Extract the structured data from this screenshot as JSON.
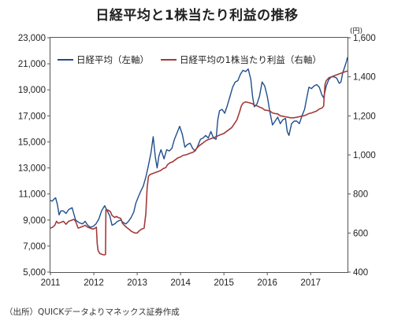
{
  "title": "日経平均と1株当たり利益の推移",
  "source": "（出所）QUICKデータよりマネックス証券作成",
  "chart_data": {
    "type": "line",
    "title": "日経平均と1株当たり利益の推移",
    "left_axis": {
      "unit": "",
      "ylim": [
        5000,
        23000
      ],
      "ticks": [
        "5,000",
        "7,000",
        "9,000",
        "11,000",
        "13,000",
        "15,000",
        "17,000",
        "19,000",
        "21,000",
        "23,000"
      ]
    },
    "right_axis": {
      "unit": "(円)",
      "ylim": [
        400,
        1600
      ],
      "ticks": [
        "400",
        "600",
        "800",
        "1,000",
        "1,200",
        "1,400",
        "1,600"
      ]
    },
    "x_ticks": [
      "2011",
      "2012",
      "2013",
      "2014",
      "2015",
      "2016",
      "2017"
    ],
    "x_range": [
      2011.0,
      2017.85
    ],
    "grid": false,
    "legend": "top-left",
    "series": [
      {
        "name": "日経平均（左軸）",
        "axis": "left",
        "color": "#1f4e8c",
        "points": [
          [
            2011.0,
            10500
          ],
          [
            2011.04,
            10450
          ],
          [
            2011.08,
            10600
          ],
          [
            2011.12,
            10700
          ],
          [
            2011.16,
            10200
          ],
          [
            2011.2,
            9400
          ],
          [
            2011.24,
            9700
          ],
          [
            2011.3,
            9700
          ],
          [
            2011.36,
            9500
          ],
          [
            2011.42,
            9800
          ],
          [
            2011.5,
            9950
          ],
          [
            2011.58,
            9000
          ],
          [
            2011.66,
            8800
          ],
          [
            2011.74,
            8700
          ],
          [
            2011.8,
            8900
          ],
          [
            2011.86,
            8600
          ],
          [
            2011.92,
            8450
          ],
          [
            2011.98,
            8500
          ],
          [
            2012.05,
            8700
          ],
          [
            2012.12,
            9100
          ],
          [
            2012.18,
            9700
          ],
          [
            2012.25,
            10100
          ],
          [
            2012.31,
            9700
          ],
          [
            2012.37,
            9300
          ],
          [
            2012.42,
            8600
          ],
          [
            2012.48,
            8700
          ],
          [
            2012.55,
            8900
          ],
          [
            2012.62,
            9000
          ],
          [
            2012.68,
            8800
          ],
          [
            2012.74,
            8700
          ],
          [
            2012.8,
            8900
          ],
          [
            2012.86,
            9200
          ],
          [
            2012.92,
            9600
          ],
          [
            2012.97,
            10300
          ],
          [
            2013.03,
            10800
          ],
          [
            2013.08,
            11200
          ],
          [
            2013.14,
            11600
          ],
          [
            2013.2,
            12300
          ],
          [
            2013.26,
            13200
          ],
          [
            2013.32,
            14200
          ],
          [
            2013.37,
            15400
          ],
          [
            2013.42,
            13800
          ],
          [
            2013.46,
            13000
          ],
          [
            2013.5,
            13900
          ],
          [
            2013.55,
            14400
          ],
          [
            2013.62,
            13700
          ],
          [
            2013.68,
            14400
          ],
          [
            2013.74,
            14300
          ],
          [
            2013.8,
            14500
          ],
          [
            2013.86,
            15200
          ],
          [
            2013.92,
            15700
          ],
          [
            2013.98,
            16200
          ],
          [
            2014.04,
            15600
          ],
          [
            2014.1,
            14600
          ],
          [
            2014.16,
            14800
          ],
          [
            2014.22,
            14900
          ],
          [
            2014.28,
            14500
          ],
          [
            2014.34,
            14300
          ],
          [
            2014.4,
            14700
          ],
          [
            2014.46,
            15200
          ],
          [
            2014.52,
            15300
          ],
          [
            2014.58,
            15500
          ],
          [
            2014.64,
            15300
          ],
          [
            2014.7,
            15800
          ],
          [
            2014.76,
            15300
          ],
          [
            2014.82,
            15200
          ],
          [
            2014.86,
            16700
          ],
          [
            2014.9,
            17400
          ],
          [
            2014.96,
            17500
          ],
          [
            2015.02,
            17200
          ],
          [
            2015.08,
            17800
          ],
          [
            2015.14,
            18500
          ],
          [
            2015.2,
            19200
          ],
          [
            2015.26,
            19600
          ],
          [
            2015.32,
            19700
          ],
          [
            2015.38,
            20200
          ],
          [
            2015.44,
            20500
          ],
          [
            2015.5,
            20400
          ],
          [
            2015.56,
            20600
          ],
          [
            2015.62,
            19800
          ],
          [
            2015.66,
            18500
          ],
          [
            2015.7,
            17700
          ],
          [
            2015.76,
            17900
          ],
          [
            2015.82,
            18500
          ],
          [
            2015.88,
            19600
          ],
          [
            2015.94,
            19300
          ],
          [
            2016.0,
            18500
          ],
          [
            2016.06,
            17300
          ],
          [
            2016.12,
            16300
          ],
          [
            2016.18,
            16600
          ],
          [
            2016.24,
            16900
          ],
          [
            2016.3,
            16400
          ],
          [
            2016.36,
            16700
          ],
          [
            2016.42,
            16800
          ],
          [
            2016.46,
            15800
          ],
          [
            2016.5,
            15500
          ],
          [
            2016.56,
            16400
          ],
          [
            2016.62,
            16600
          ],
          [
            2016.68,
            16600
          ],
          [
            2016.74,
            16400
          ],
          [
            2016.8,
            17000
          ],
          [
            2016.86,
            17500
          ],
          [
            2016.9,
            18200
          ],
          [
            2016.96,
            19200
          ],
          [
            2017.02,
            19100
          ],
          [
            2017.08,
            19300
          ],
          [
            2017.14,
            19400
          ],
          [
            2017.2,
            19200
          ],
          [
            2017.26,
            18600
          ],
          [
            2017.3,
            18400
          ],
          [
            2017.36,
            19300
          ],
          [
            2017.42,
            19800
          ],
          [
            2017.48,
            20000
          ],
          [
            2017.54,
            20000
          ],
          [
            2017.6,
            19900
          ],
          [
            2017.66,
            19500
          ],
          [
            2017.7,
            19600
          ],
          [
            2017.74,
            20300
          ],
          [
            2017.78,
            20700
          ],
          [
            2017.82,
            21100
          ],
          [
            2017.85,
            21500
          ]
        ]
      },
      {
        "name": "日経平均の1株当たり利益（右軸）",
        "axis": "right",
        "color": "#a33a3a",
        "points": [
          [
            2011.0,
            625
          ],
          [
            2011.05,
            630
          ],
          [
            2011.1,
            640
          ],
          [
            2011.14,
            660
          ],
          [
            2011.18,
            650
          ],
          [
            2011.24,
            655
          ],
          [
            2011.3,
            660
          ],
          [
            2011.36,
            645
          ],
          [
            2011.42,
            660
          ],
          [
            2011.48,
            665
          ],
          [
            2011.54,
            670
          ],
          [
            2011.58,
            660
          ],
          [
            2011.64,
            625
          ],
          [
            2011.7,
            630
          ],
          [
            2011.76,
            635
          ],
          [
            2011.8,
            640
          ],
          [
            2011.86,
            630
          ],
          [
            2011.92,
            625
          ],
          [
            2011.98,
            620
          ],
          [
            2012.03,
            625
          ],
          [
            2012.06,
            630
          ],
          [
            2012.08,
            545
          ],
          [
            2012.1,
            510
          ],
          [
            2012.14,
            495
          ],
          [
            2012.2,
            490
          ],
          [
            2012.24,
            488
          ],
          [
            2012.27,
            490
          ],
          [
            2012.28,
            720
          ],
          [
            2012.32,
            718
          ],
          [
            2012.38,
            710
          ],
          [
            2012.42,
            690
          ],
          [
            2012.48,
            680
          ],
          [
            2012.52,
            685
          ],
          [
            2012.56,
            680
          ],
          [
            2012.62,
            675
          ],
          [
            2012.66,
            650
          ],
          [
            2012.7,
            640
          ],
          [
            2012.76,
            628
          ],
          [
            2012.82,
            618
          ],
          [
            2012.86,
            610
          ],
          [
            2012.9,
            605
          ],
          [
            2012.95,
            600
          ],
          [
            2013.0,
            600
          ],
          [
            2013.04,
            610
          ],
          [
            2013.1,
            620
          ],
          [
            2013.16,
            625
          ],
          [
            2013.2,
            700
          ],
          [
            2013.23,
            830
          ],
          [
            2013.26,
            890
          ],
          [
            2013.3,
            900
          ],
          [
            2013.36,
            905
          ],
          [
            2013.42,
            910
          ],
          [
            2013.48,
            915
          ],
          [
            2013.54,
            920
          ],
          [
            2013.6,
            930
          ],
          [
            2013.66,
            935
          ],
          [
            2013.7,
            950
          ],
          [
            2013.76,
            960
          ],
          [
            2013.82,
            965
          ],
          [
            2013.88,
            975
          ],
          [
            2013.94,
            985
          ],
          [
            2014.0,
            990
          ],
          [
            2014.06,
            998
          ],
          [
            2014.12,
            1000
          ],
          [
            2014.18,
            1005
          ],
          [
            2014.24,
            1010
          ],
          [
            2014.3,
            1015
          ],
          [
            2014.36,
            1030
          ],
          [
            2014.42,
            1045
          ],
          [
            2014.48,
            1055
          ],
          [
            2014.54,
            1065
          ],
          [
            2014.6,
            1075
          ],
          [
            2014.66,
            1080
          ],
          [
            2014.72,
            1085
          ],
          [
            2014.78,
            1090
          ],
          [
            2014.84,
            1095
          ],
          [
            2014.88,
            1100
          ],
          [
            2014.94,
            1105
          ],
          [
            2015.0,
            1110
          ],
          [
            2015.06,
            1120
          ],
          [
            2015.12,
            1130
          ],
          [
            2015.18,
            1140
          ],
          [
            2015.24,
            1160
          ],
          [
            2015.3,
            1180
          ],
          [
            2015.36,
            1220
          ],
          [
            2015.4,
            1250
          ],
          [
            2015.44,
            1265
          ],
          [
            2015.5,
            1272
          ],
          [
            2015.56,
            1268
          ],
          [
            2015.62,
            1265
          ],
          [
            2015.66,
            1262
          ],
          [
            2015.7,
            1255
          ],
          [
            2015.74,
            1252
          ],
          [
            2015.78,
            1250
          ],
          [
            2015.82,
            1245
          ],
          [
            2015.88,
            1240
          ],
          [
            2015.94,
            1230
          ],
          [
            2016.0,
            1228
          ],
          [
            2016.06,
            1225
          ],
          [
            2016.12,
            1215
          ],
          [
            2016.18,
            1212
          ],
          [
            2016.24,
            1210
          ],
          [
            2016.3,
            1200
          ],
          [
            2016.36,
            1198
          ],
          [
            2016.42,
            1195
          ],
          [
            2016.48,
            1193
          ],
          [
            2016.54,
            1190
          ],
          [
            2016.6,
            1190
          ],
          [
            2016.66,
            1192
          ],
          [
            2016.72,
            1195
          ],
          [
            2016.78,
            1198
          ],
          [
            2016.84,
            1200
          ],
          [
            2016.9,
            1205
          ],
          [
            2016.96,
            1212
          ],
          [
            2017.02,
            1215
          ],
          [
            2017.08,
            1220
          ],
          [
            2017.14,
            1225
          ],
          [
            2017.2,
            1235
          ],
          [
            2017.26,
            1240
          ],
          [
            2017.3,
            1250
          ],
          [
            2017.33,
            1360
          ],
          [
            2017.36,
            1380
          ],
          [
            2017.42,
            1395
          ],
          [
            2017.48,
            1400
          ],
          [
            2017.54,
            1405
          ],
          [
            2017.6,
            1410
          ],
          [
            2017.66,
            1415
          ],
          [
            2017.72,
            1420
          ],
          [
            2017.78,
            1425
          ],
          [
            2017.85,
            1430
          ]
        ]
      }
    ]
  }
}
